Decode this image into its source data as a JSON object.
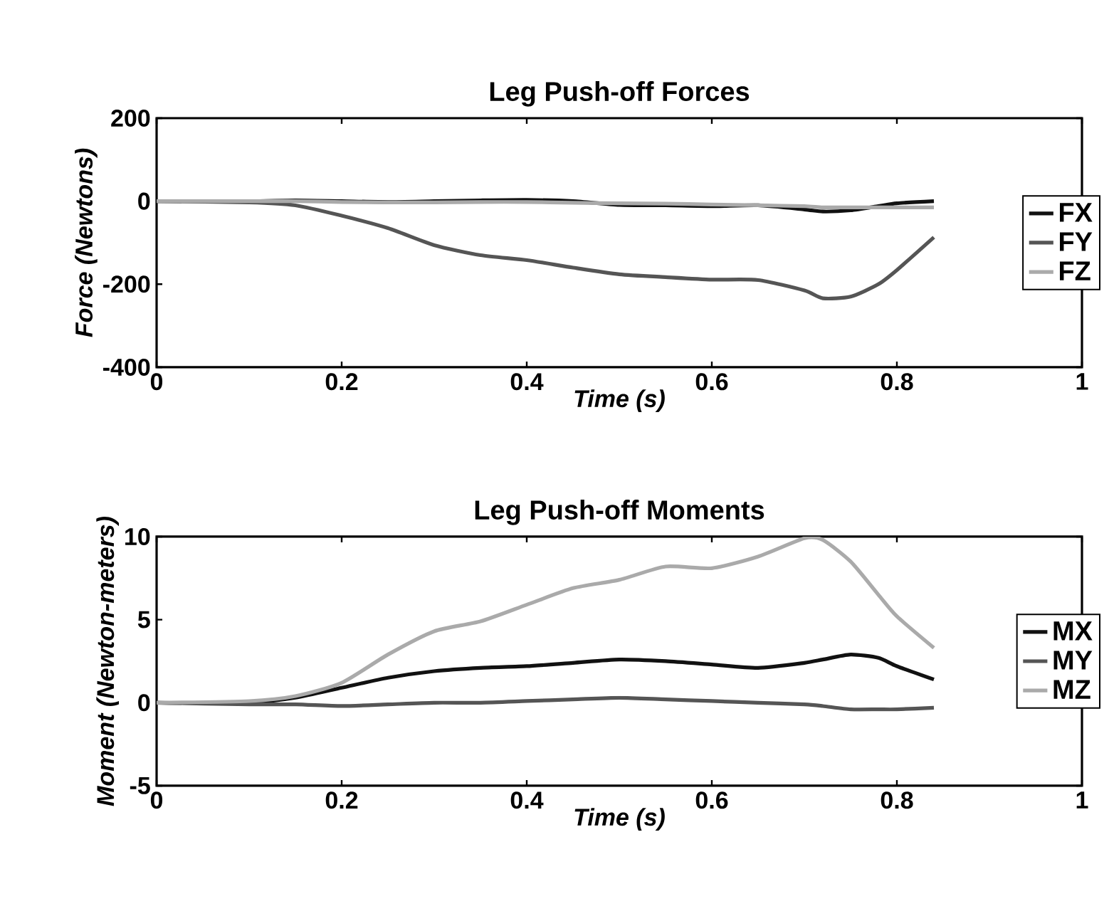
{
  "chart_data": [
    {
      "type": "line",
      "title": "Leg Push-off Forces",
      "xlabel": "Time (s)",
      "ylabel": "Force (Newtons)",
      "x": [
        0,
        0.1,
        0.15,
        0.2,
        0.25,
        0.3,
        0.35,
        0.4,
        0.45,
        0.5,
        0.55,
        0.6,
        0.65,
        0.7,
        0.72,
        0.75,
        0.78,
        0.8,
        0.84
      ],
      "series": [
        {
          "name": "FX",
          "color": "#111111",
          "values": [
            0,
            0,
            2,
            0,
            -2,
            0,
            2,
            3,
            0,
            -9,
            -10,
            -12,
            -10,
            -20,
            -25,
            -22,
            -12,
            -5,
            0
          ]
        },
        {
          "name": "FY",
          "color": "#555555",
          "values": [
            0,
            -3,
            -10,
            -35,
            -65,
            -106,
            -130,
            -142,
            -160,
            -176,
            -183,
            -189,
            -190,
            -215,
            -234,
            -230,
            -200,
            -166,
            -87
          ]
        },
        {
          "name": "FZ",
          "color": "#aaaaaa",
          "values": [
            0,
            0,
            0,
            -2,
            -3,
            -3,
            -2,
            -2,
            -4,
            -5,
            -6,
            -8,
            -10,
            -12,
            -15,
            -15,
            -15,
            -15,
            -15
          ]
        }
      ],
      "xlim": [
        0,
        1
      ],
      "xticks": [
        0,
        0.2,
        0.4,
        0.6,
        0.8,
        1
      ],
      "ylim": [
        -400,
        200
      ],
      "yticks": [
        -400,
        -200,
        0,
        200
      ],
      "legend": "right",
      "grid": false
    },
    {
      "type": "line",
      "title": "Leg Push-off Moments",
      "xlabel": "Time (s)",
      "ylabel": "Moment (Newton-meters)",
      "x": [
        0,
        0.1,
        0.15,
        0.2,
        0.25,
        0.3,
        0.35,
        0.4,
        0.45,
        0.5,
        0.55,
        0.6,
        0.65,
        0.7,
        0.72,
        0.75,
        0.78,
        0.8,
        0.84
      ],
      "series": [
        {
          "name": "MX",
          "color": "#111111",
          "values": [
            0,
            0,
            0.3,
            0.9,
            1.5,
            1.9,
            2.1,
            2.2,
            2.4,
            2.6,
            2.5,
            2.3,
            2.1,
            2.4,
            2.6,
            2.9,
            2.7,
            2.2,
            1.4
          ]
        },
        {
          "name": "MY",
          "color": "#555555",
          "values": [
            0,
            -0.1,
            -0.1,
            -0.2,
            -0.1,
            0,
            0,
            0.1,
            0.2,
            0.3,
            0.2,
            0.1,
            0,
            -0.1,
            -0.2,
            -0.4,
            -0.4,
            -0.4,
            -0.3
          ]
        },
        {
          "name": "MZ",
          "color": "#aaaaaa",
          "values": [
            0,
            0.1,
            0.4,
            1.2,
            2.9,
            4.3,
            4.9,
            5.9,
            6.9,
            7.4,
            8.2,
            8.1,
            8.8,
            9.9,
            9.8,
            8.5,
            6.5,
            5.2,
            3.3
          ]
        }
      ],
      "xlim": [
        0,
        1
      ],
      "xticks": [
        0,
        0.2,
        0.4,
        0.6,
        0.8,
        1
      ],
      "ylim": [
        -5,
        10
      ],
      "yticks": [
        -5,
        0,
        5,
        10
      ],
      "legend": "right",
      "grid": false
    }
  ]
}
